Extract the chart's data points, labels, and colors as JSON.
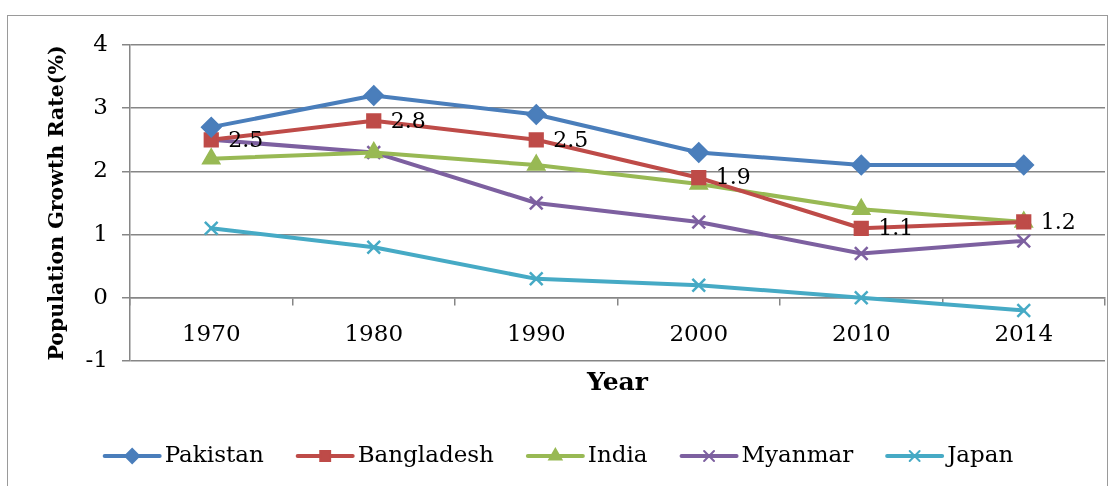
{
  "chart_data": {
    "type": "line",
    "xlabel": "Year",
    "ylabel": "Population Growth Rate(%)",
    "categories": [
      "1970",
      "1980",
      "1990",
      "2000",
      "2010",
      "2014"
    ],
    "ylim": [
      -1,
      4
    ],
    "yticks": [
      -1,
      0,
      1,
      2,
      3,
      4
    ],
    "grid": "y",
    "legend": "bottom",
    "series": [
      {
        "name": "Pakistan",
        "color": "#4a7ebb",
        "marker": "diamond",
        "values": [
          2.7,
          3.2,
          2.9,
          2.3,
          2.1,
          2.1
        ]
      },
      {
        "name": "Bangladesh",
        "color": "#be4b48",
        "marker": "square",
        "values": [
          2.5,
          2.8,
          2.5,
          1.9,
          1.1,
          1.2
        ],
        "value_labels": [
          "2.5",
          "2.8",
          "2.5",
          "1.9",
          "1.1",
          "1.2"
        ]
      },
      {
        "name": "India",
        "color": "#98b954",
        "marker": "triangle",
        "values": [
          2.2,
          2.3,
          2.1,
          1.8,
          1.4,
          1.2
        ]
      },
      {
        "name": "Myanmar",
        "color": "#7d60a0",
        "marker": "cross",
        "values": [
          2.5,
          2.3,
          1.5,
          1.2,
          0.7,
          0.9
        ]
      },
      {
        "name": "Japan",
        "color": "#46aac5",
        "marker": "cross",
        "values": [
          1.1,
          0.8,
          0.3,
          0.2,
          0.0,
          -0.2
        ]
      }
    ]
  }
}
